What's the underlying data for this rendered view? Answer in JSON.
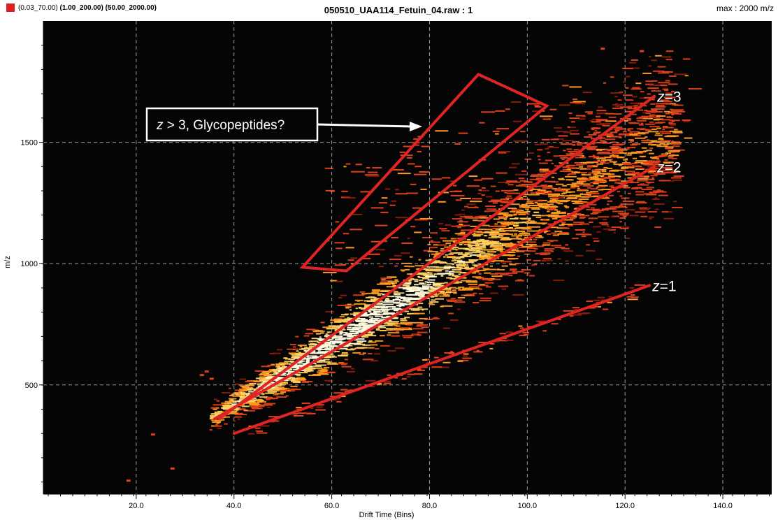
{
  "header": {
    "swatch_color": "#e02020",
    "range1": "(0.03_70.00)",
    "range2": "(1.00_200.00)",
    "range3": "(50.00_2000.00)",
    "title": "050510_UAA114_Fetuin_04.raw : 1",
    "max_label": "max : 2000 m/z"
  },
  "chart_data": {
    "type": "heatmap",
    "title": "050510_UAA114_Fetuin_04.raw : 1",
    "xlabel": "Drift Time (Bins)",
    "ylabel": "m/z",
    "xlim": [
      1,
      150
    ],
    "ylim": [
      50,
      2000
    ],
    "x_ticks": [
      20,
      40,
      60,
      80,
      100,
      120,
      140
    ],
    "x_tick_labels": [
      "20.0",
      "40.0",
      "60.0",
      "80.0",
      "100.0",
      "120.0",
      "140.0"
    ],
    "y_ticks": [
      500,
      1000,
      1500
    ],
    "y_tick_labels": [
      "500",
      "1000",
      "1500"
    ],
    "grid": true,
    "background": "#050505",
    "colormap": [
      "#8a1a0a",
      "#e0401a",
      "#ff9a20",
      "#ffd060",
      "#fffbe0"
    ],
    "trend_lines": [
      {
        "label": "=1",
        "x": [
          40,
          125
        ],
        "y": [
          300,
          910
        ]
      },
      {
        "label": "=2",
        "x": [
          36,
          126
        ],
        "y": [
          360,
          1400
        ]
      },
      {
        "label": "=3",
        "x": [
          37,
          126
        ],
        "y": [
          360,
          1690
        ]
      }
    ],
    "region": {
      "label": "z > 3, Glycopeptides?",
      "polygon_x": [
        54,
        63,
        104,
        90
      ],
      "polygon_y": [
        985,
        970,
        1650,
        1780
      ]
    },
    "annotations": {
      "callout_text_prefix": "z",
      "callout_text_rest": " > 3, Glycopeptides?",
      "z_symbol": "z"
    }
  }
}
